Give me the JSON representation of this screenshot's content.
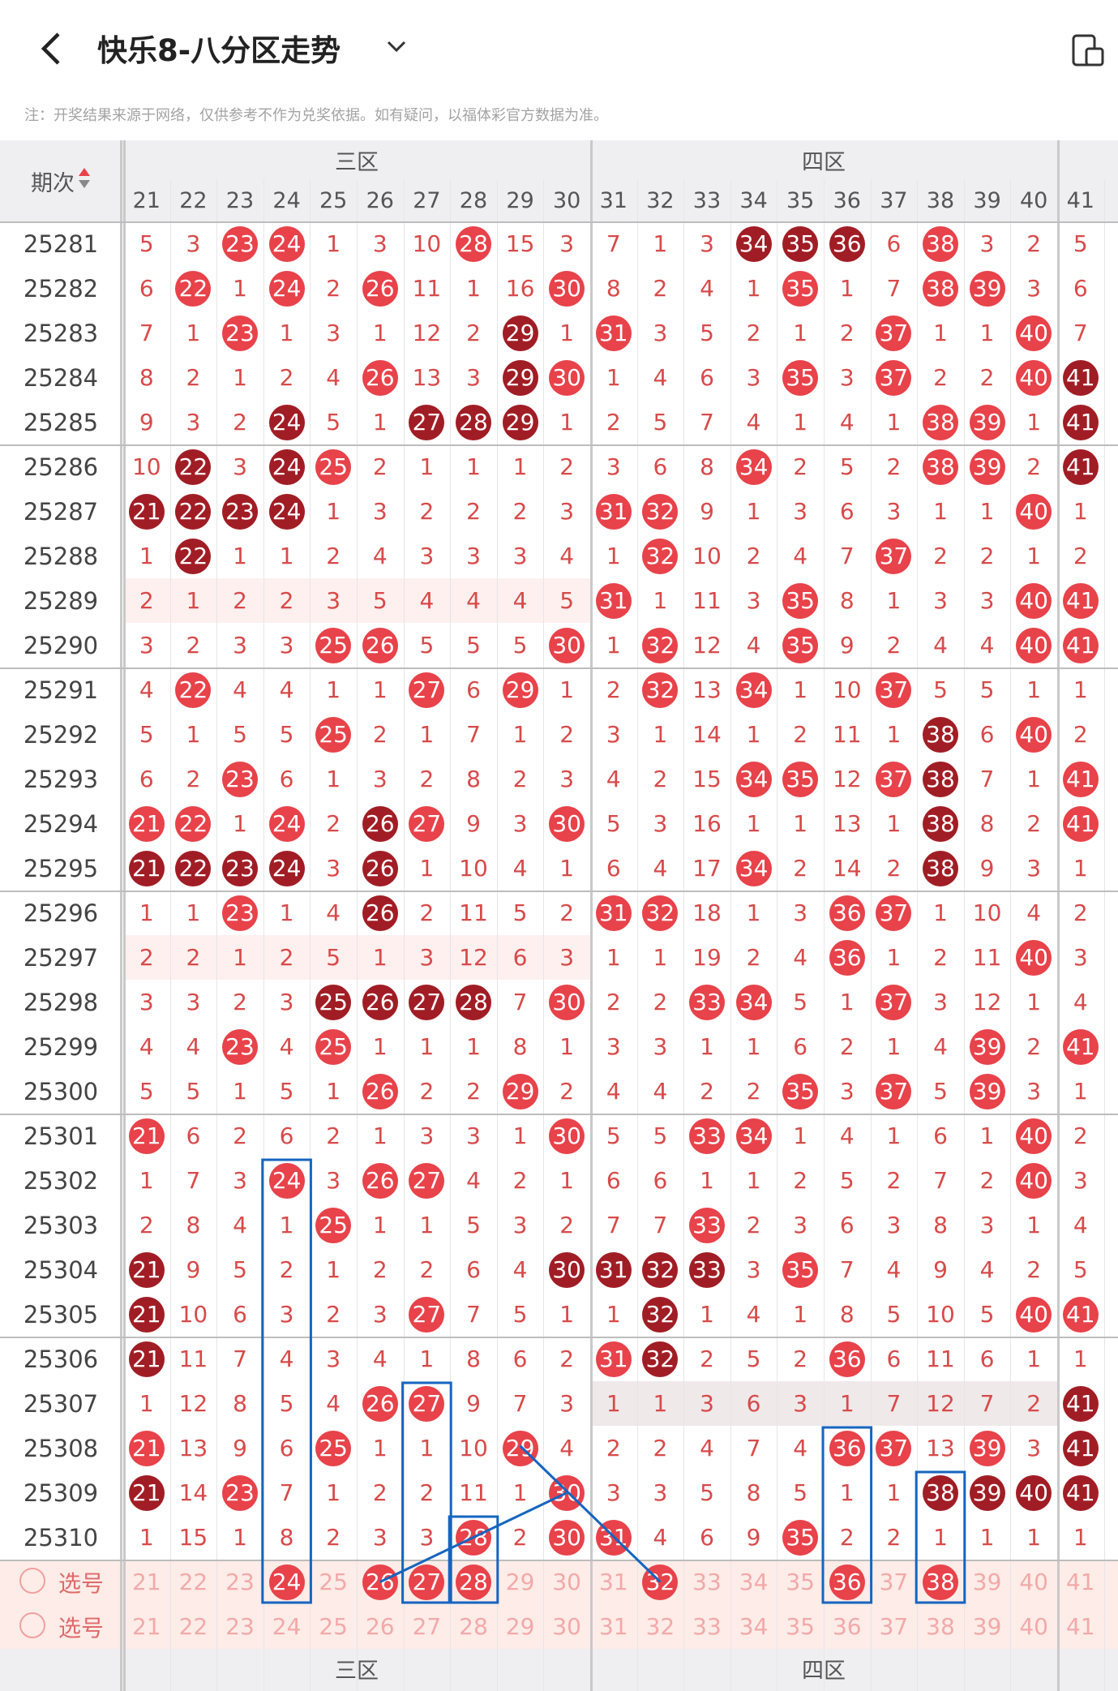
{
  "header": {
    "title": "快乐8-八分区走势",
    "back_icon": "chevron-left-icon",
    "dropdown_icon": "chevron-down-icon",
    "right_icon": "device-switch-icon"
  },
  "note": "注：开奖结果来源于网络，仅供参考不作为兑奖依据。如有疑问，以福体彩官方数据为准。",
  "table": {
    "issue_header": "期次",
    "zones": [
      {
        "label": "三区",
        "from": 21,
        "to": 30
      },
      {
        "label": "四区",
        "from": 31,
        "to": 40
      }
    ],
    "columns": [
      "21",
      "22",
      "23",
      "24",
      "25",
      "26",
      "27",
      "28",
      "29",
      "30",
      "31",
      "32",
      "33",
      "34",
      "35",
      "36",
      "37",
      "38",
      "39",
      "40",
      "41"
    ],
    "rows": [
      {
        "issue": "25281",
        "cells": [
          "5",
          "3",
          "23",
          "24",
          "1",
          "3",
          "10",
          "28",
          "15",
          "3",
          "7",
          "1",
          "3",
          "34",
          "35",
          "36",
          "6",
          "38",
          "3",
          "2",
          "5"
        ],
        "dark": [
          "34",
          "35",
          "36"
        ]
      },
      {
        "issue": "25282",
        "cells": [
          "6",
          "22",
          "1",
          "24",
          "2",
          "26",
          "11",
          "1",
          "16",
          "30",
          "8",
          "2",
          "4",
          "1",
          "35",
          "1",
          "7",
          "38",
          "39",
          "3",
          "6"
        ],
        "dark": []
      },
      {
        "issue": "25283",
        "cells": [
          "7",
          "1",
          "23",
          "1",
          "3",
          "1",
          "12",
          "2",
          "29",
          "1",
          "31",
          "3",
          "5",
          "2",
          "1",
          "2",
          "37",
          "1",
          "1",
          "40",
          "7"
        ],
        "dark": [
          "29"
        ]
      },
      {
        "issue": "25284",
        "cells": [
          "8",
          "2",
          "1",
          "2",
          "4",
          "26",
          "13",
          "3",
          "29",
          "30",
          "1",
          "4",
          "6",
          "3",
          "35",
          "3",
          "37",
          "2",
          "2",
          "40",
          "41"
        ],
        "dark": [
          "29",
          "41"
        ]
      },
      {
        "issue": "25285",
        "cells": [
          "9",
          "3",
          "2",
          "24",
          "5",
          "1",
          "27",
          "28",
          "29",
          "1",
          "2",
          "5",
          "7",
          "4",
          "1",
          "4",
          "1",
          "38",
          "39",
          "1",
          "41"
        ],
        "dark": [
          "24",
          "27",
          "28",
          "29",
          "41"
        ]
      },
      {
        "issue": "25286",
        "cells": [
          "10",
          "22",
          "3",
          "24",
          "25",
          "2",
          "1",
          "1",
          "1",
          "2",
          "3",
          "6",
          "8",
          "34",
          "2",
          "5",
          "2",
          "38",
          "39",
          "2",
          "41"
        ],
        "dark": [
          "22",
          "24",
          "41"
        ]
      },
      {
        "issue": "25287",
        "cells": [
          "21",
          "22",
          "23",
          "24",
          "1",
          "3",
          "2",
          "2",
          "2",
          "3",
          "31",
          "32",
          "9",
          "1",
          "3",
          "6",
          "3",
          "1",
          "1",
          "40",
          "1"
        ],
        "dark": [
          "21",
          "22",
          "23",
          "24"
        ]
      },
      {
        "issue": "25288",
        "cells": [
          "1",
          "22",
          "1",
          "1",
          "2",
          "4",
          "3",
          "3",
          "3",
          "4",
          "1",
          "32",
          "10",
          "2",
          "4",
          "7",
          "37",
          "2",
          "2",
          "1",
          "2"
        ],
        "dark": [
          "22"
        ]
      },
      {
        "issue": "25289",
        "cells": [
          "2",
          "1",
          "2",
          "2",
          "3",
          "5",
          "4",
          "4",
          "4",
          "5",
          "31",
          "1",
          "11",
          "3",
          "35",
          "8",
          "1",
          "3",
          "3",
          "40",
          "41"
        ],
        "dark": []
      },
      {
        "issue": "25290",
        "cells": [
          "3",
          "2",
          "3",
          "3",
          "25",
          "26",
          "5",
          "5",
          "5",
          "30",
          "1",
          "32",
          "12",
          "4",
          "35",
          "9",
          "2",
          "4",
          "4",
          "40",
          "41"
        ],
        "dark": []
      },
      {
        "issue": "25291",
        "cells": [
          "4",
          "22",
          "4",
          "4",
          "1",
          "1",
          "27",
          "6",
          "29",
          "1",
          "2",
          "32",
          "13",
          "34",
          "1",
          "10",
          "37",
          "5",
          "5",
          "1",
          "1"
        ],
        "dark": []
      },
      {
        "issue": "25292",
        "cells": [
          "5",
          "1",
          "5",
          "5",
          "25",
          "2",
          "1",
          "7",
          "1",
          "2",
          "3",
          "1",
          "14",
          "1",
          "2",
          "11",
          "1",
          "38",
          "6",
          "40",
          "2"
        ],
        "dark": [
          "38"
        ]
      },
      {
        "issue": "25293",
        "cells": [
          "6",
          "2",
          "23",
          "6",
          "1",
          "3",
          "2",
          "8",
          "2",
          "3",
          "4",
          "2",
          "15",
          "34",
          "35",
          "12",
          "37",
          "38",
          "7",
          "1",
          "41"
        ],
        "dark": [
          "38"
        ]
      },
      {
        "issue": "25294",
        "cells": [
          "21",
          "22",
          "1",
          "24",
          "2",
          "26",
          "27",
          "9",
          "3",
          "30",
          "5",
          "3",
          "16",
          "1",
          "1",
          "13",
          "1",
          "38",
          "8",
          "2",
          "41"
        ],
        "dark": [
          "26",
          "38"
        ]
      },
      {
        "issue": "25295",
        "cells": [
          "21",
          "22",
          "23",
          "24",
          "3",
          "26",
          "1",
          "10",
          "4",
          "1",
          "6",
          "4",
          "17",
          "34",
          "2",
          "14",
          "2",
          "38",
          "9",
          "3",
          "1"
        ],
        "dark": [
          "21",
          "22",
          "23",
          "24",
          "26",
          "38"
        ]
      },
      {
        "issue": "25296",
        "cells": [
          "1",
          "1",
          "23",
          "1",
          "4",
          "26",
          "2",
          "11",
          "5",
          "2",
          "31",
          "32",
          "18",
          "1",
          "3",
          "36",
          "37",
          "1",
          "10",
          "4",
          "2"
        ],
        "dark": [
          "26"
        ]
      },
      {
        "issue": "25297",
        "cells": [
          "2",
          "2",
          "1",
          "2",
          "5",
          "1",
          "3",
          "12",
          "6",
          "3",
          "1",
          "1",
          "19",
          "2",
          "4",
          "36",
          "1",
          "2",
          "11",
          "40",
          "3"
        ],
        "dark": []
      },
      {
        "issue": "25298",
        "cells": [
          "3",
          "3",
          "2",
          "3",
          "25",
          "26",
          "27",
          "28",
          "7",
          "30",
          "2",
          "2",
          "33",
          "34",
          "5",
          "1",
          "37",
          "3",
          "12",
          "1",
          "4"
        ],
        "dark": [
          "25",
          "26",
          "27",
          "28"
        ]
      },
      {
        "issue": "25299",
        "cells": [
          "4",
          "4",
          "23",
          "4",
          "25",
          "1",
          "1",
          "1",
          "8",
          "1",
          "3",
          "3",
          "1",
          "1",
          "6",
          "2",
          "1",
          "4",
          "39",
          "2",
          "41"
        ],
        "dark": []
      },
      {
        "issue": "25300",
        "cells": [
          "5",
          "5",
          "1",
          "5",
          "1",
          "26",
          "2",
          "2",
          "29",
          "2",
          "4",
          "4",
          "2",
          "2",
          "35",
          "3",
          "37",
          "5",
          "39",
          "3",
          "1"
        ],
        "dark": []
      },
      {
        "issue": "25301",
        "cells": [
          "21",
          "6",
          "2",
          "6",
          "2",
          "1",
          "3",
          "3",
          "1",
          "30",
          "5",
          "5",
          "33",
          "34",
          "1",
          "4",
          "1",
          "6",
          "1",
          "40",
          "2"
        ],
        "dark": []
      },
      {
        "issue": "25302",
        "cells": [
          "1",
          "7",
          "3",
          "24",
          "3",
          "26",
          "27",
          "4",
          "2",
          "1",
          "6",
          "6",
          "1",
          "1",
          "2",
          "5",
          "2",
          "7",
          "2",
          "40",
          "3"
        ],
        "dark": []
      },
      {
        "issue": "25303",
        "cells": [
          "2",
          "8",
          "4",
          "1",
          "25",
          "1",
          "1",
          "5",
          "3",
          "2",
          "7",
          "7",
          "33",
          "2",
          "3",
          "6",
          "3",
          "8",
          "3",
          "1",
          "4"
        ],
        "dark": []
      },
      {
        "issue": "25304",
        "cells": [
          "21",
          "9",
          "5",
          "2",
          "1",
          "2",
          "2",
          "6",
          "4",
          "30",
          "31",
          "32",
          "33",
          "3",
          "35",
          "7",
          "4",
          "9",
          "4",
          "2",
          "5"
        ],
        "dark": [
          "21",
          "30",
          "31",
          "32",
          "33"
        ]
      },
      {
        "issue": "25305",
        "cells": [
          "21",
          "10",
          "6",
          "3",
          "2",
          "3",
          "27",
          "7",
          "5",
          "1",
          "1",
          "32",
          "1",
          "4",
          "1",
          "8",
          "5",
          "10",
          "5",
          "40",
          "41"
        ],
        "dark": [
          "21",
          "32"
        ]
      },
      {
        "issue": "25306",
        "cells": [
          "21",
          "11",
          "7",
          "4",
          "3",
          "4",
          "1",
          "8",
          "6",
          "2",
          "31",
          "32",
          "2",
          "5",
          "2",
          "36",
          "6",
          "11",
          "6",
          "1",
          "1"
        ],
        "dark": [
          "21",
          "32"
        ]
      },
      {
        "issue": "25307",
        "cells": [
          "1",
          "12",
          "8",
          "5",
          "4",
          "26",
          "27",
          "9",
          "7",
          "3",
          "1",
          "1",
          "3",
          "6",
          "3",
          "1",
          "7",
          "12",
          "7",
          "2",
          "41"
        ],
        "dark": [
          "41"
        ]
      },
      {
        "issue": "25308",
        "cells": [
          "21",
          "13",
          "9",
          "6",
          "25",
          "1",
          "1",
          "10",
          "29",
          "4",
          "2",
          "2",
          "4",
          "7",
          "4",
          "36",
          "37",
          "13",
          "39",
          "3",
          "41"
        ],
        "dark": [
          "41"
        ]
      },
      {
        "issue": "25309",
        "cells": [
          "21",
          "14",
          "23",
          "7",
          "1",
          "2",
          "2",
          "11",
          "1",
          "30",
          "3",
          "3",
          "5",
          "8",
          "5",
          "1",
          "1",
          "38",
          "39",
          "40",
          "41"
        ],
        "dark": [
          "21",
          "38",
          "39",
          "40",
          "41"
        ]
      },
      {
        "issue": "25310",
        "cells": [
          "1",
          "15",
          "1",
          "8",
          "2",
          "3",
          "3",
          "28",
          "2",
          "30",
          "31",
          "4",
          "6",
          "9",
          "35",
          "2",
          "2",
          "1",
          "1",
          "1",
          "1"
        ],
        "dark": []
      }
    ],
    "select_rows": [
      {
        "label": "选号",
        "picked": [
          "24",
          "26",
          "27",
          "28",
          "32",
          "36",
          "38"
        ]
      },
      {
        "label": "选号",
        "picked": []
      }
    ],
    "footer_zones": [
      "三区",
      "四区"
    ]
  },
  "colors": {
    "ball_red": "#e8424a",
    "ball_dark": "#a11d25",
    "number_red": "#d84a4a",
    "header_bg": "#efeff1",
    "pink_row": "#fdf0ef",
    "select_bg": "#fdece8",
    "box_blue": "#1565c0"
  }
}
